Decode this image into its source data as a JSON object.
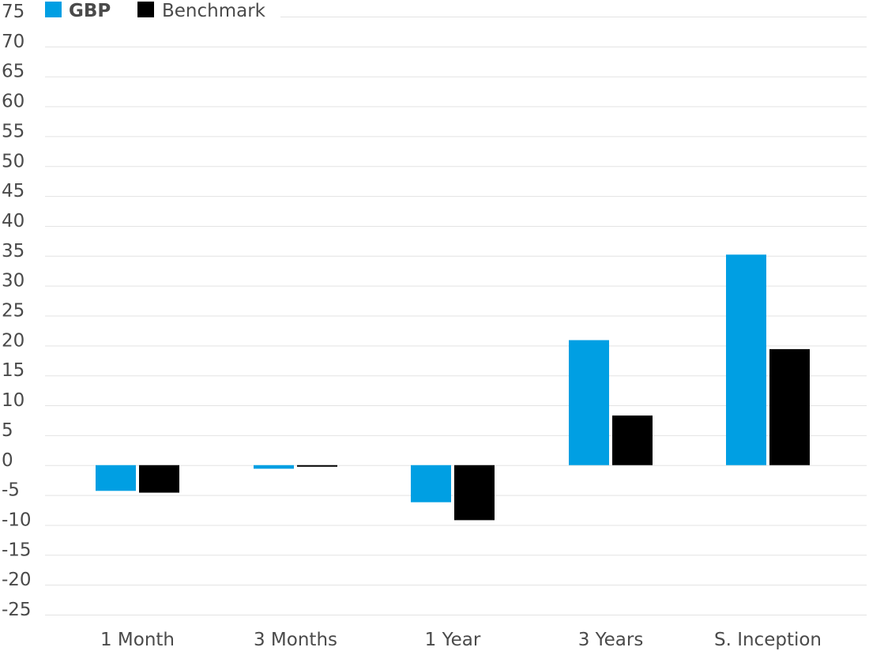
{
  "chart_data": {
    "type": "bar",
    "title": "",
    "xlabel": "",
    "ylabel": "",
    "ylim": [
      -25,
      75
    ],
    "ytick_step": 5,
    "grid": true,
    "legend_position": "top-left",
    "categories": [
      "1 Month",
      "3 Months",
      "1 Year",
      "3 Years",
      "S. Inception"
    ],
    "series": [
      {
        "name": "GBP",
        "color": "#009fe3",
        "values": [
          -4.3,
          -0.6,
          -6.2,
          20.9,
          35.2
        ]
      },
      {
        "name": "Benchmark",
        "color": "#000000",
        "values": [
          -4.6,
          -0.2,
          -9.2,
          8.3,
          19.4
        ]
      }
    ]
  }
}
